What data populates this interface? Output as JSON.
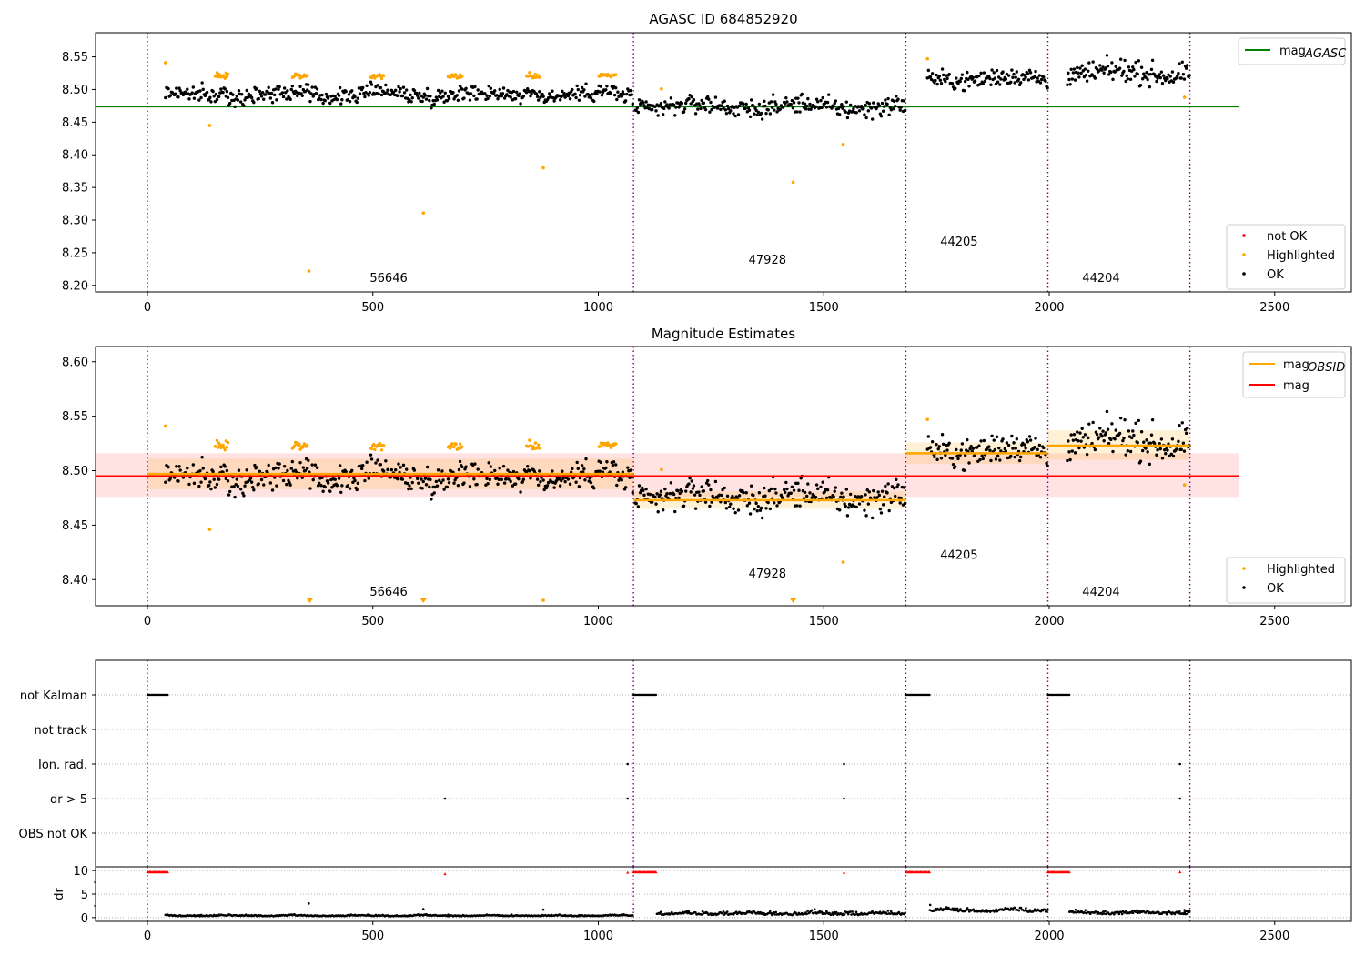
{
  "chart_data": [
    {
      "type": "scatter",
      "title": "AGASC ID 684852920",
      "xlim": [
        -115,
        2670
      ],
      "ylim": [
        8.19,
        8.587
      ],
      "xticks": [
        0,
        500,
        1000,
        1500,
        2000,
        2500
      ],
      "yticks": [
        8.2,
        8.25,
        8.3,
        8.35,
        8.4,
        8.45,
        8.5,
        8.55
      ],
      "ytick_labels": [
        "8.20",
        "8.25",
        "8.30",
        "8.35",
        "8.40",
        "8.45",
        "8.50",
        "8.55"
      ],
      "grid": false,
      "legend_upper": {
        "position": "top-right",
        "entries": [
          {
            "name": "mag",
            "sub": "AGASC",
            "color": "#008000",
            "marker": "line"
          }
        ]
      },
      "legend_lower": {
        "position": "bottom-right",
        "entries": [
          {
            "name": "not OK",
            "color": "#ff0000",
            "marker": "dot"
          },
          {
            "name": "Highlighted",
            "color": "#ffa500",
            "marker": "dot"
          },
          {
            "name": "OK",
            "color": "#000000",
            "marker": "dot"
          }
        ]
      },
      "agasc_mag": {
        "value": 8.474,
        "x_range": [
          -115,
          2420
        ]
      },
      "obsid_boundaries": [
        0,
        1078,
        1682,
        1997,
        2312
      ],
      "obsid_labels": [
        {
          "text": "56646",
          "x": 535,
          "y": 8.205
        },
        {
          "text": "47928",
          "x": 1375,
          "y": 8.233
        },
        {
          "text": "44205",
          "x": 1800,
          "y": 8.261
        },
        {
          "text": "44204",
          "x": 2115,
          "y": 8.205
        }
      ],
      "segments": [
        {
          "x": [
            40,
            1078
          ],
          "mean": 8.492,
          "noise": 0.006,
          "hi": [
            [
              150,
              180
            ],
            [
              320,
              355
            ],
            [
              495,
              525
            ],
            [
              665,
              700
            ],
            [
              840,
              870
            ],
            [
              1000,
              1040
            ]
          ],
          "hi_offset": 0.029
        },
        {
          "x": [
            1082,
            1682
          ],
          "mean": 8.474,
          "noise": 0.007,
          "hi": [],
          "hi_offset": 0
        },
        {
          "x": [
            1730,
            1997
          ],
          "mean": 8.517,
          "noise": 0.007,
          "hi": [],
          "hi_offset": 0
        },
        {
          "x": [
            2040,
            2312
          ],
          "mean": 8.525,
          "noise": 0.008,
          "hi": [],
          "hi_offset": 0
        }
      ],
      "highlighted_outliers": [
        [
          40,
          8.541
        ],
        [
          138,
          8.445
        ],
        [
          358,
          8.222
        ],
        [
          612,
          8.311
        ],
        [
          878,
          8.38
        ],
        [
          1140,
          8.501
        ],
        [
          1432,
          8.358
        ],
        [
          1543,
          8.416
        ],
        [
          1730,
          8.547
        ],
        [
          2300,
          8.488
        ]
      ]
    },
    {
      "type": "scatter",
      "title": "Magnitude Estimates",
      "xlim": [
        -115,
        2670
      ],
      "ylim": [
        8.376,
        8.614
      ],
      "xticks": [
        0,
        500,
        1000,
        1500,
        2000,
        2500
      ],
      "yticks": [
        8.4,
        8.45,
        8.5,
        8.55,
        8.6
      ],
      "ytick_labels": [
        "8.40",
        "8.45",
        "8.50",
        "8.55",
        "8.60"
      ],
      "grid": false,
      "legend_upper": {
        "position": "top-right",
        "entries": [
          {
            "name": "mag",
            "sub": "OBSID",
            "color": "#ffa500",
            "marker": "line"
          },
          {
            "name": "mag",
            "sub": "",
            "color": "#ff0000",
            "marker": "line"
          }
        ]
      },
      "legend_lower": {
        "position": "bottom-right",
        "entries": [
          {
            "name": "Highlighted",
            "color": "#ffa500",
            "marker": "dot"
          },
          {
            "name": "OK",
            "color": "#000000",
            "marker": "dot"
          }
        ]
      },
      "global_mag": {
        "value": 8.495,
        "band": [
          8.476,
          8.516
        ],
        "x_range": [
          -115,
          2420
        ]
      },
      "obsid_mags": [
        {
          "x": [
            0,
            1078
          ],
          "value": 8.497,
          "band": [
            8.483,
            8.511
          ]
        },
        {
          "x": [
            1078,
            1682
          ],
          "value": 8.473,
          "band": [
            8.465,
            8.481
          ]
        },
        {
          "x": [
            1682,
            1997
          ],
          "value": 8.516,
          "band": [
            8.506,
            8.526
          ]
        },
        {
          "x": [
            1997,
            2312
          ],
          "value": 8.523,
          "band": [
            8.51,
            8.537
          ]
        }
      ],
      "obsid_boundaries": [
        0,
        1078,
        1682,
        1997,
        2312
      ],
      "obsid_labels": [
        {
          "text": "56646",
          "x": 535,
          "y": 8.385
        },
        {
          "text": "47928",
          "x": 1375,
          "y": 8.402
        },
        {
          "text": "44205",
          "x": 1800,
          "y": 8.419
        },
        {
          "text": "44204",
          "x": 2115,
          "y": 8.385
        }
      ],
      "clipped_markers": [
        360,
        612,
        1432
      ],
      "highlighted_outliers": [
        [
          40,
          8.541
        ],
        [
          138,
          8.446
        ],
        [
          878,
          8.381
        ],
        [
          1140,
          8.501
        ],
        [
          1543,
          8.416
        ],
        [
          1730,
          8.547
        ],
        [
          2300,
          8.487
        ]
      ]
    },
    {
      "type": "scatter",
      "title": "",
      "xlim": [
        -115,
        2670
      ],
      "xticks": [
        0,
        500,
        1000,
        1500,
        2000,
        2500
      ],
      "categories": [
        "not Kalman",
        "not track",
        "Ion. rad.",
        "dr > 5",
        "OBS not OK"
      ],
      "grid": true,
      "obsid_boundaries": [
        0,
        1078,
        1682,
        1997,
        2312
      ],
      "not_kalman_runs": [
        [
          0,
          45
        ],
        [
          1078,
          1128
        ],
        [
          1682,
          1735
        ],
        [
          1997,
          2045
        ]
      ],
      "ion_rad_x": [
        1065,
        1545,
        2290
      ],
      "dr_gt5_x": [
        660,
        1065,
        1545,
        2290
      ]
    },
    {
      "type": "scatter",
      "title": "",
      "xlim": [
        -115,
        2670
      ],
      "ylim": [
        -0.8,
        10.8
      ],
      "yticks": [
        0,
        5,
        10
      ],
      "ytick_labels": [
        "0",
        "5",
        "10"
      ],
      "ylabel": "dr",
      "xticks": [
        0,
        500,
        1000,
        1500,
        2000,
        2500
      ],
      "xtick_labels": [
        "0",
        "500",
        "1000",
        "1500",
        "2000",
        "2500"
      ],
      "grid": true,
      "obsid_boundaries": [
        0,
        1078,
        1682,
        1997,
        2312
      ],
      "red_runs": [
        [
          0,
          45
        ],
        [
          1078,
          1128
        ],
        [
          1682,
          1735
        ],
        [
          1997,
          2045
        ]
      ],
      "red_single": [
        [
          660,
          9.3
        ],
        [
          1065,
          9.6
        ],
        [
          1545,
          9.6
        ],
        [
          2290,
          9.7
        ]
      ],
      "dr_segments": [
        {
          "x": [
            40,
            1078
          ],
          "base": 0.3,
          "noise": 0.12
        },
        {
          "x": [
            1130,
            1682
          ],
          "base": 0.55,
          "noise": 0.3
        },
        {
          "x": [
            1735,
            1997
          ],
          "base": 1.2,
          "noise": 0.35
        },
        {
          "x": [
            2045,
            2312
          ],
          "base": 0.7,
          "noise": 0.3
        }
      ],
      "dr_outliers": [
        [
          358,
          3.0
        ],
        [
          612,
          1.8
        ],
        [
          878,
          1.7
        ],
        [
          1736,
          2.7
        ],
        [
          2300,
          1.6
        ]
      ]
    }
  ]
}
